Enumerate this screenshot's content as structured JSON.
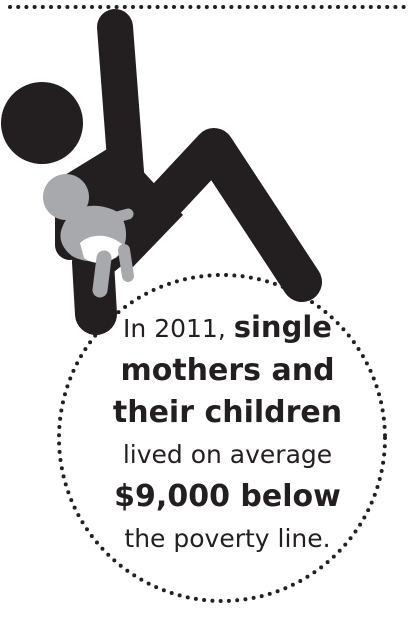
{
  "icons": {
    "falling_adult": "adult-figure-icon",
    "baby": "baby-icon"
  },
  "colors": {
    "adult": "#231f20",
    "baby": "#a7a9ac",
    "diaper": "#ffffff",
    "dots": "#231f20",
    "text": "#231f20"
  },
  "caption": {
    "line1_prefix": "In 2011, ",
    "line1_emphasis": "single",
    "line2": "mothers and",
    "line3": "their children",
    "line4": "lived on average",
    "line5": "$9,000 below",
    "line6": "the poverty line."
  }
}
